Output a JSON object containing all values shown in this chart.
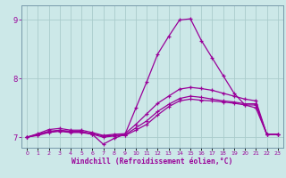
{
  "background_color": "#cce8e8",
  "grid_color": "#aacccc",
  "line_color": "#990099",
  "xlabel": "Windchill (Refroidissement éolien,°C)",
  "xlim": [
    -0.5,
    23.5
  ],
  "ylim": [
    6.82,
    9.25
  ],
  "yticks": [
    7,
    8,
    9
  ],
  "xticks": [
    0,
    1,
    2,
    3,
    4,
    5,
    6,
    7,
    8,
    9,
    10,
    11,
    12,
    13,
    14,
    15,
    16,
    17,
    18,
    19,
    20,
    21,
    22,
    23
  ],
  "line1_x": [
    0,
    1,
    2,
    3,
    4,
    5,
    6,
    7,
    8,
    9,
    10,
    11,
    12,
    13,
    14,
    15,
    16,
    17,
    18,
    19,
    20,
    21,
    22,
    23
  ],
  "line1_y": [
    7.0,
    7.05,
    7.1,
    7.12,
    7.1,
    7.1,
    7.05,
    6.88,
    6.98,
    7.05,
    7.5,
    7.95,
    8.42,
    8.72,
    9.0,
    9.02,
    8.65,
    8.35,
    8.05,
    7.75,
    7.55,
    7.5,
    7.05,
    7.05
  ],
  "line2_x": [
    0,
    1,
    2,
    3,
    4,
    5,
    6,
    7,
    8,
    9,
    10,
    11,
    12,
    13,
    14,
    15,
    16,
    17,
    18,
    19,
    20,
    21,
    22,
    23
  ],
  "line2_y": [
    7.0,
    7.03,
    7.08,
    7.1,
    7.08,
    7.08,
    7.05,
    7.0,
    7.02,
    7.03,
    7.12,
    7.22,
    7.38,
    7.52,
    7.62,
    7.65,
    7.63,
    7.62,
    7.6,
    7.58,
    7.55,
    7.55,
    7.05,
    7.05
  ],
  "line3_x": [
    0,
    1,
    2,
    3,
    4,
    5,
    6,
    7,
    8,
    9,
    10,
    11,
    12,
    13,
    14,
    15,
    16,
    17,
    18,
    19,
    20,
    21,
    22,
    23
  ],
  "line3_y": [
    7.0,
    7.04,
    7.09,
    7.11,
    7.09,
    7.09,
    7.06,
    7.02,
    7.03,
    7.04,
    7.16,
    7.28,
    7.44,
    7.56,
    7.66,
    7.7,
    7.68,
    7.65,
    7.62,
    7.6,
    7.57,
    7.57,
    7.05,
    7.05
  ],
  "line4_x": [
    0,
    1,
    2,
    3,
    4,
    5,
    6,
    7,
    8,
    9,
    10,
    11,
    12,
    13,
    14,
    15,
    16,
    17,
    18,
    19,
    20,
    21,
    22,
    23
  ],
  "line4_y": [
    7.0,
    7.06,
    7.13,
    7.15,
    7.12,
    7.12,
    7.08,
    7.03,
    7.05,
    7.06,
    7.22,
    7.4,
    7.58,
    7.7,
    7.82,
    7.85,
    7.83,
    7.8,
    7.75,
    7.7,
    7.65,
    7.62,
    7.05,
    7.05
  ]
}
